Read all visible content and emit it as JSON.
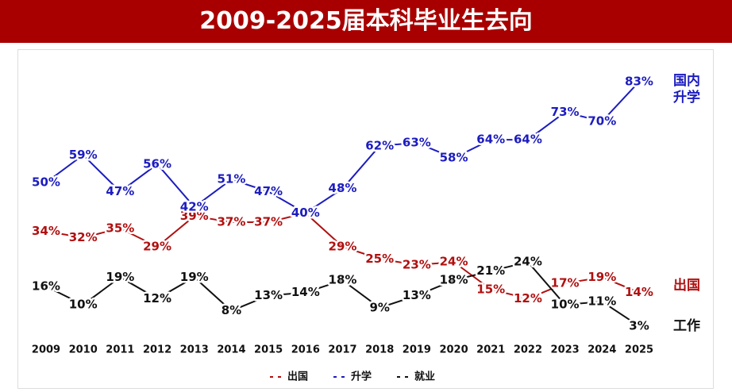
{
  "chart_data": {
    "type": "line",
    "title": "2009-2025届本科毕业生去向",
    "categories": [
      "2009",
      "2010",
      "2011",
      "2012",
      "2013",
      "2014",
      "2015",
      "2016",
      "2017",
      "2018",
      "2019",
      "2020",
      "2021",
      "2022",
      "2023",
      "2024",
      "2025"
    ],
    "series": [
      {
        "name": "出国",
        "color": "#b01010",
        "values": [
          34,
          32,
          35,
          29,
          39,
          37,
          37,
          40,
          29,
          25,
          23,
          24,
          15,
          12,
          17,
          19,
          14
        ],
        "value_labels": [
          "34%",
          "32%",
          "35%",
          "29%",
          "39%",
          "37%",
          "37%",
          "40%",
          "29%",
          "25%",
          "23%",
          "24%",
          "15%",
          "12%",
          "17%",
          "19%",
          "14%"
        ]
      },
      {
        "name": "升学",
        "color": "#1c1cc0",
        "values": [
          50,
          59,
          47,
          56,
          42,
          51,
          47,
          40,
          48,
          62,
          63,
          58,
          64,
          64,
          73,
          70,
          83
        ],
        "value_labels": [
          "50%",
          "59%",
          "47%",
          "56%",
          "42%",
          "51%",
          "47%",
          "40%",
          "48%",
          "62%",
          "63%",
          "58%",
          "64%",
          "64%",
          "73%",
          "70%",
          "83%"
        ]
      },
      {
        "name": "就业",
        "color": "#111111",
        "values": [
          16,
          10,
          19,
          12,
          19,
          8,
          13,
          14,
          18,
          9,
          13,
          18,
          21,
          24,
          10,
          11,
          3
        ],
        "value_labels": [
          "16%",
          "10%",
          "19%",
          "12%",
          "19%",
          "8%",
          "13%",
          "14%",
          "18%",
          "9%",
          "13%",
          "18%",
          "21%",
          "24%",
          "10%",
          "11%",
          "3%"
        ]
      }
    ],
    "annotations": [
      {
        "text": "国内\n升学",
        "color": "#1c1cc0"
      },
      {
        "text": "出国",
        "color": "#b01010"
      },
      {
        "text": "工作",
        "color": "#111111"
      }
    ],
    "ylim": [
      0,
      90
    ]
  }
}
